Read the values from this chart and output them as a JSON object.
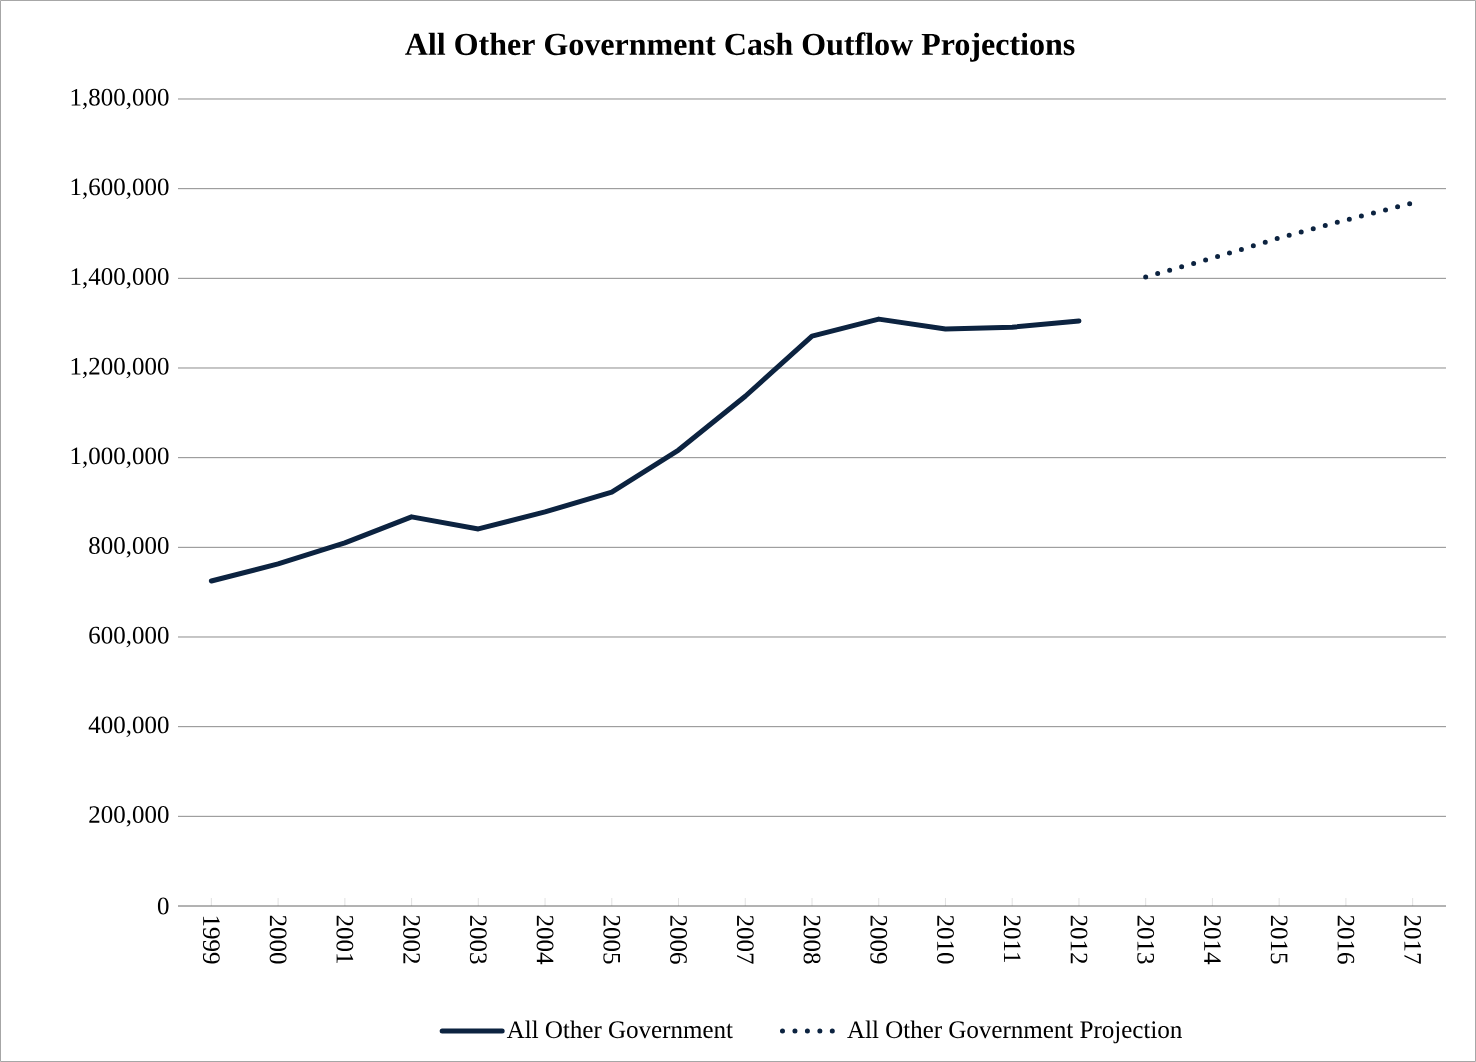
{
  "chart_data": {
    "type": "line",
    "title": "All Other Government Cash Outflow Projections",
    "categories": [
      "1999",
      "2000",
      "2001",
      "2002",
      "2003",
      "2004",
      "2005",
      "2006",
      "2007",
      "2008",
      "2009",
      "2010",
      "2011",
      "2012",
      "2013",
      "2014",
      "2015",
      "2016",
      "2017"
    ],
    "series": [
      {
        "name": "All Other Government",
        "color": "#0c2340",
        "line_style": "solid",
        "values": [
          725000,
          763000,
          810000,
          868000,
          841000,
          879000,
          923000,
          1017000,
          1137000,
          1271000,
          1309000,
          1287000,
          1291000,
          1305000,
          null,
          null,
          null,
          null,
          null
        ]
      },
      {
        "name": "All Other Government Projection",
        "color": "#0c2340",
        "line_style": "dotted",
        "values": [
          null,
          null,
          null,
          null,
          null,
          null,
          null,
          null,
          null,
          null,
          null,
          null,
          null,
          null,
          1403000,
          1445000,
          1490000,
          1530000,
          1568000
        ]
      }
    ],
    "ylim": [
      0,
      1800000
    ],
    "yticks": [
      0,
      {
        "value": 200000,
        "label": "200,000"
      },
      {
        "value": 400000,
        "label": "400,000"
      },
      {
        "value": 600000,
        "label": "600,000"
      },
      {
        "value": 800000,
        "label": "800,000"
      },
      {
        "value": 1000000,
        "label": "1,000,000"
      },
      {
        "value": 1200000,
        "label": "1,200,000"
      },
      {
        "value": 1400000,
        "label": "1,400,000"
      },
      {
        "value": 1600000,
        "label": "1,600,000"
      },
      {
        "value": 1800000,
        "label": "1,800,000"
      }
    ],
    "grid": "y",
    "legend": "bottom",
    "marker": "none"
  }
}
